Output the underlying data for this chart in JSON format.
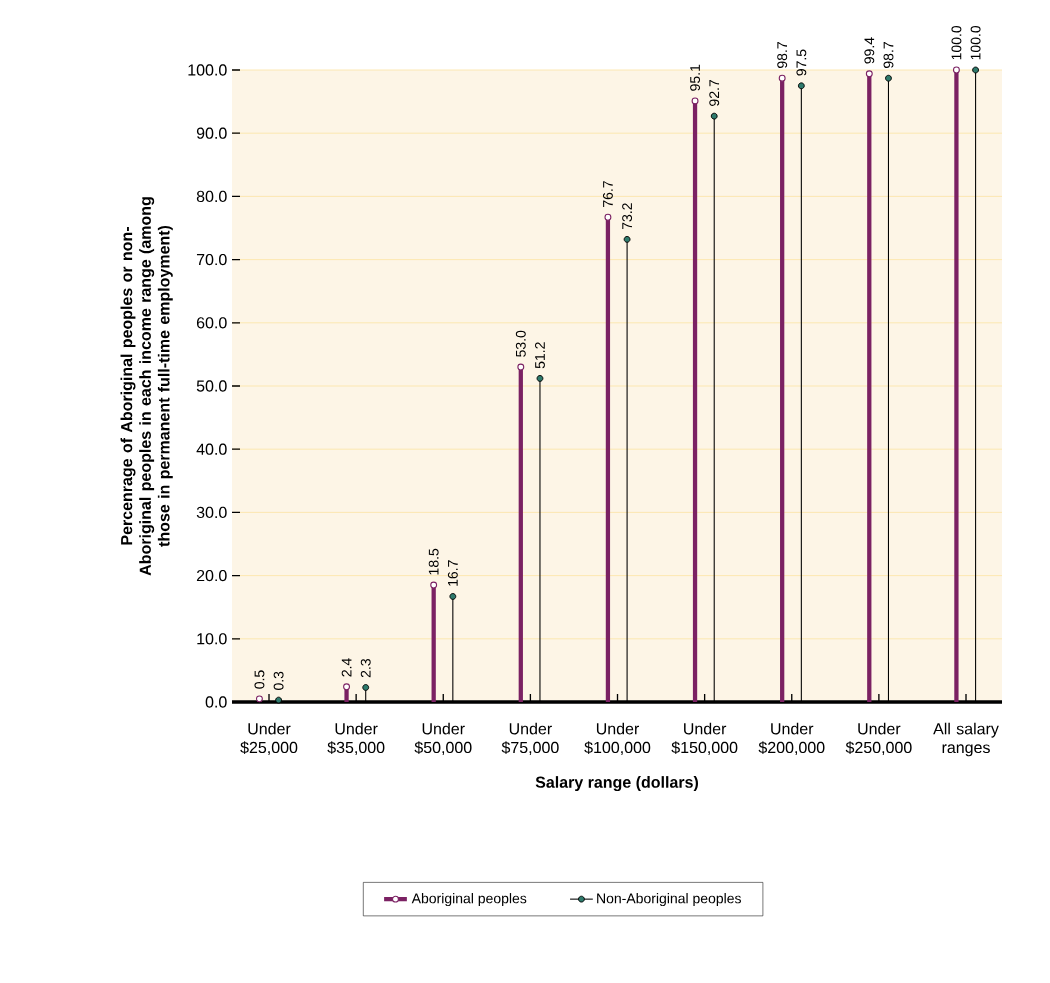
{
  "chart_data": {
    "type": "lollipop",
    "xlabel": "Salary range (dollars)",
    "ylabel": "Percenrage of Aboriginal peoples or non-Aboriginal peoples in each income range (among those in permanent full-time employment)",
    "categories": [
      "Under $25,000",
      "Under $35,000",
      "Under $50,000",
      "Under $75,000",
      "Under $100,000",
      "Under $150,000",
      "Under $200,000",
      "Under $250,000",
      "All salary ranges"
    ],
    "series": [
      {
        "name": "Aboriginal peoples",
        "color": "#7b2163",
        "values": [
          0.5,
          2.4,
          18.5,
          53.0,
          76.7,
          95.1,
          98.7,
          99.4,
          100.0
        ],
        "value_labels": [
          "0.5",
          "2.4",
          "18.5",
          "53.0",
          "76.7",
          "95.1",
          "98.7",
          "99.4",
          "100.0"
        ]
      },
      {
        "name": "Non-Aboriginal peoples",
        "color": "#2e7a6c",
        "values": [
          0.3,
          2.3,
          16.7,
          51.2,
          73.2,
          92.7,
          97.5,
          98.7,
          100.0
        ],
        "value_labels": [
          "0.3",
          "2.3",
          "16.7",
          "51.2",
          "73.2",
          "92.7",
          "97.5",
          "98.7",
          "100.0"
        ]
      }
    ],
    "ylim": [
      0,
      100
    ],
    "yticks": [
      {
        "value": 0,
        "label": "0.0"
      },
      {
        "value": 10,
        "label": "10.0"
      },
      {
        "value": 20,
        "label": "20.0"
      },
      {
        "value": 30,
        "label": "30.0"
      },
      {
        "value": 40,
        "label": "40.0"
      },
      {
        "value": 50,
        "label": "50.0"
      },
      {
        "value": 60,
        "label": "60.0"
      },
      {
        "value": 70,
        "label": "70.0"
      },
      {
        "value": 80,
        "label": "80.0"
      },
      {
        "value": 90,
        "label": "90.0"
      },
      {
        "value": 100,
        "label": "100.0"
      }
    ],
    "grid": "y",
    "legend": "bottom",
    "marker": "circle"
  }
}
